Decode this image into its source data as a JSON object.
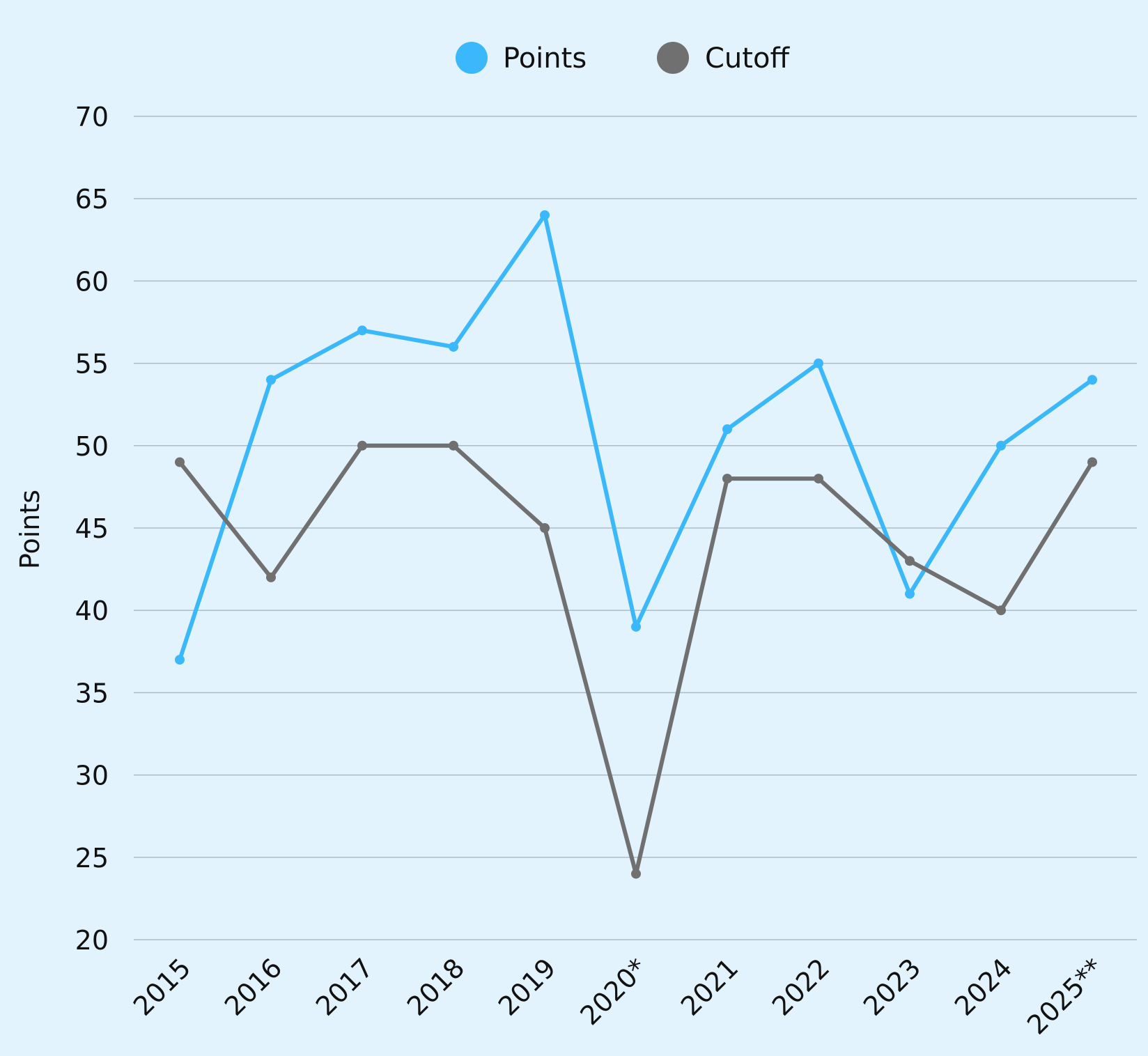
{
  "chart_data": {
    "type": "line",
    "categories": [
      "2015",
      "2016",
      "2017",
      "2018",
      "2019",
      "2020*",
      "2021",
      "2022",
      "2023",
      "2024",
      "2025**"
    ],
    "series": [
      {
        "name": "Points",
        "color": "#3bb8fb",
        "values": [
          37,
          54,
          57,
          56,
          64,
          39,
          51,
          55,
          41,
          50,
          54
        ]
      },
      {
        "name": "Cutoff",
        "color": "#707070",
        "values": [
          49,
          42,
          50,
          50,
          45,
          24,
          48,
          48,
          43,
          40,
          49
        ]
      }
    ],
    "ylabel": "Points",
    "xlabel": "",
    "ylim": [
      20,
      70
    ],
    "yticks": [
      20,
      25,
      30,
      35,
      40,
      45,
      50,
      55,
      60,
      65,
      70
    ],
    "grid": true,
    "legend_position": "top-center"
  }
}
